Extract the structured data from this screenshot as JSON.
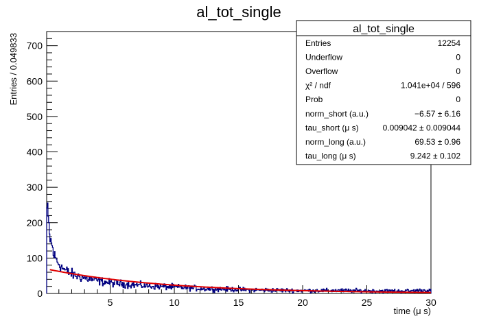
{
  "chart_data": {
    "type": "line",
    "title": "al_tot_single",
    "xlabel": "time (μ s)",
    "ylabel": "Entries / 0.049833",
    "xlim": [
      0.05,
      30
    ],
    "ylim": [
      0,
      740
    ],
    "x_ticks": [
      5,
      10,
      15,
      20,
      25,
      30
    ],
    "y_ticks": [
      0,
      100,
      200,
      300,
      400,
      500,
      600,
      700
    ],
    "grid": false,
    "series": [
      {
        "style": "histogram",
        "color": "#000080",
        "x": [
          0.1,
          0.2,
          0.3,
          0.4,
          0.5,
          0.6,
          0.8,
          1.0,
          1.2,
          1.5,
          2.0,
          2.5,
          3.0,
          3.5,
          4.0,
          5.0,
          6.0,
          7.0,
          8.0,
          10.0,
          12.0,
          14.0,
          16.0,
          18.0,
          20.0,
          22.0,
          24.0,
          26.0,
          28.0,
          30.0
        ],
        "values": [
          240,
          200,
          155,
          145,
          130,
          110,
          95,
          85,
          75,
          65,
          55,
          48,
          44,
          40,
          36,
          30,
          27,
          24,
          21,
          18,
          14,
          12,
          10,
          9,
          8,
          8,
          8,
          7,
          7,
          9
        ]
      },
      {
        "style": "line",
        "color": "#e00000",
        "fit": {
          "norm_short": -6.57,
          "tau_short": 0.009042,
          "norm_long": 69.53,
          "tau_long": 9.242
        }
      }
    ]
  },
  "stats_box": {
    "title": "al_tot_single",
    "rows": [
      {
        "label": "Entries",
        "value": "12254"
      },
      {
        "label": "Underflow",
        "value": "0"
      },
      {
        "label": "Overflow",
        "value": "0"
      },
      {
        "label": "χ² / ndf",
        "value": "1.041e+04 / 596"
      },
      {
        "label": "Prob",
        "value": "0"
      },
      {
        "label": "norm_short (a.u.)",
        "value": "−6.57 ± 6.16"
      },
      {
        "label": "tau_short (μ s)",
        "value": "0.009042 ± 0.009044"
      },
      {
        "label": "norm_long (a.u.)",
        "value": "69.53 ± 0.96"
      },
      {
        "label": "tau_long (μ s)",
        "value": "9.242 ± 0.102"
      }
    ]
  }
}
